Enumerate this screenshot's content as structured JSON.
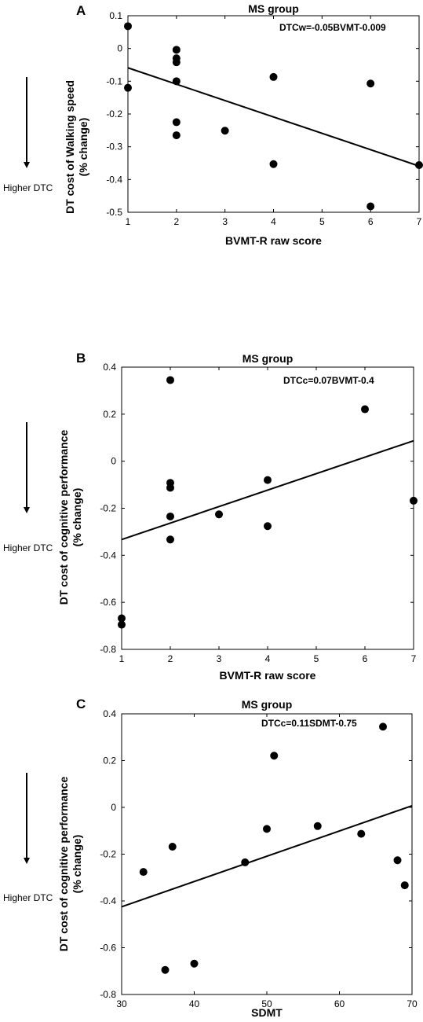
{
  "side_annotation": "Higher DTC",
  "chart_data": [
    {
      "type": "scatter",
      "panel": "A",
      "title": "MS group",
      "xlabel": "BVMT-R raw score",
      "ylabel": [
        "DT cost of Walking speed",
        "(% change)"
      ],
      "equation": "DTCw=-0.05BVMT-0.009",
      "xlim": [
        1,
        7
      ],
      "ylim": [
        -0.5,
        0.1
      ],
      "xticks": [
        1,
        2,
        3,
        4,
        5,
        6,
        7
      ],
      "xtick_labels": [
        "1",
        "2",
        "3",
        "4",
        "5",
        "6",
        "7"
      ],
      "yticks": [
        0.1,
        0,
        -0.1,
        -0.2,
        -0.3,
        -0.4,
        -0.5
      ],
      "ytick_labels": [
        "0.1",
        "0",
        "-0.1",
        "-0.2",
        "-0.3",
        "-0.4",
        "-0.5"
      ],
      "points": [
        [
          1,
          0.068
        ],
        [
          1,
          -0.12
        ],
        [
          2,
          -0.004
        ],
        [
          2,
          -0.03
        ],
        [
          2,
          -0.042
        ],
        [
          2,
          -0.1
        ],
        [
          2,
          -0.225
        ],
        [
          2,
          -0.265
        ],
        [
          3,
          -0.251
        ],
        [
          4,
          -0.087
        ],
        [
          4,
          -0.353
        ],
        [
          6,
          -0.107
        ],
        [
          6,
          -0.482
        ],
        [
          7,
          -0.356
        ]
      ],
      "fit_line": [
        [
          1,
          -0.059
        ],
        [
          7,
          -0.359
        ]
      ]
    },
    {
      "type": "scatter",
      "panel": "B",
      "title": "MS group",
      "xlabel": "BVMT-R raw score",
      "ylabel": [
        "DT cost of cognitive performance",
        "(% change)"
      ],
      "equation": "DTCc=0.07BVMT-0.4",
      "xlim": [
        1,
        7
      ],
      "ylim": [
        -0.8,
        0.4
      ],
      "xticks": [
        1,
        2,
        3,
        4,
        5,
        6,
        7
      ],
      "xtick_labels": [
        "1",
        "2",
        "3",
        "4",
        "5",
        "6",
        "7"
      ],
      "yticks": [
        0.4,
        0.2,
        0,
        -0.2,
        -0.4,
        -0.6,
        -0.8
      ],
      "ytick_labels": [
        "0.4",
        "0.2",
        "0",
        "-0.2",
        "-0.4",
        "-0.6",
        "-0.8"
      ],
      "points": [
        [
          1,
          -0.668
        ],
        [
          1,
          -0.695
        ],
        [
          2,
          0.345
        ],
        [
          2,
          -0.092
        ],
        [
          2,
          -0.113
        ],
        [
          2,
          -0.235
        ],
        [
          2,
          -0.333
        ],
        [
          3,
          -0.226
        ],
        [
          4,
          -0.08
        ],
        [
          4,
          -0.276
        ],
        [
          6,
          0.221
        ],
        [
          7,
          -0.168
        ]
      ],
      "fit_line": [
        [
          1,
          -0.333
        ],
        [
          7,
          0.087
        ]
      ]
    },
    {
      "type": "scatter",
      "panel": "C",
      "title": "MS group",
      "xlabel": "SDMT",
      "ylabel": [
        "DT cost of cognitive performance",
        "(% change)"
      ],
      "equation": "DTCc=0.11SDMT-0.75",
      "xlim": [
        30,
        70
      ],
      "ylim": [
        -0.8,
        0.4
      ],
      "xticks": [
        30,
        40,
        50,
        60,
        70
      ],
      "xtick_labels": [
        "30",
        "40",
        "50",
        "60",
        "70"
      ],
      "yticks": [
        0.4,
        0.2,
        0,
        -0.2,
        -0.4,
        -0.6,
        -0.8
      ],
      "ytick_labels": [
        "0.4",
        "0.2",
        "0",
        "-0.2",
        "-0.4",
        "-0.6",
        "-0.8"
      ],
      "points": [
        [
          33,
          -0.276
        ],
        [
          36,
          -0.695
        ],
        [
          37,
          -0.168
        ],
        [
          40,
          -0.668
        ],
        [
          47,
          -0.235
        ],
        [
          50,
          -0.092
        ],
        [
          51,
          0.221
        ],
        [
          57,
          -0.08
        ],
        [
          63,
          -0.113
        ],
        [
          66,
          0.345
        ],
        [
          68,
          -0.226
        ],
        [
          69,
          -0.333
        ]
      ],
      "fit_line": [
        [
          30,
          -0.425
        ],
        [
          70,
          0.007
        ]
      ]
    }
  ]
}
